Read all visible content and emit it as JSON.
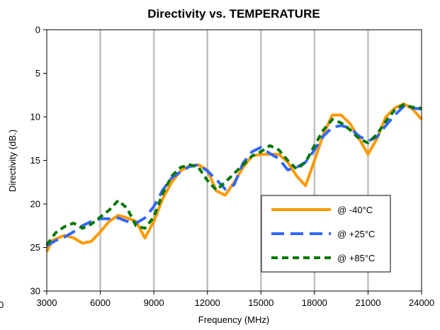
{
  "chart_data": {
    "type": "line",
    "title": "Directivity vs. TEMPERATURE",
    "xlabel": "Frequency (MHz)",
    "ylabel": "Directivity (dB.)",
    "xlim": [
      3000,
      24000
    ],
    "ylim": [
      0,
      30
    ],
    "y_inverted": true,
    "x_ticks": [
      3000,
      6000,
      9000,
      12000,
      15000,
      18000,
      21000,
      24000
    ],
    "y_ticks": [
      0,
      5,
      10,
      15,
      20,
      25,
      30
    ],
    "grid": "vertical",
    "legend_position": "bottom-right",
    "stray_tick_label": "0",
    "series": [
      {
        "name": "@ -40°C",
        "color": "#FF9900",
        "dash": "solid",
        "points": [
          [
            3000,
            25.5
          ],
          [
            3300,
            24.2
          ],
          [
            4000,
            23.6
          ],
          [
            4500,
            23.9
          ],
          [
            5000,
            24.5
          ],
          [
            5500,
            24.3
          ],
          [
            6000,
            23.2
          ],
          [
            6500,
            22.0
          ],
          [
            7000,
            21.3
          ],
          [
            7500,
            21.6
          ],
          [
            8000,
            22.0
          ],
          [
            8500,
            23.9
          ],
          [
            9000,
            22.0
          ],
          [
            9500,
            19.4
          ],
          [
            10000,
            17.5
          ],
          [
            10500,
            16.2
          ],
          [
            11000,
            15.6
          ],
          [
            11500,
            15.5
          ],
          [
            12000,
            16.1
          ],
          [
            12500,
            18.5
          ],
          [
            13000,
            19.0
          ],
          [
            13500,
            17.5
          ],
          [
            14000,
            15.8
          ],
          [
            14500,
            14.5
          ],
          [
            15000,
            14.3
          ],
          [
            15500,
            14.3
          ],
          [
            16000,
            14.3
          ],
          [
            16500,
            15.2
          ],
          [
            17000,
            16.8
          ],
          [
            17500,
            17.9
          ],
          [
            18000,
            15.0
          ],
          [
            18500,
            12.0
          ],
          [
            19000,
            9.8
          ],
          [
            19500,
            9.8
          ],
          [
            20000,
            10.8
          ],
          [
            20500,
            12.5
          ],
          [
            21000,
            14.3
          ],
          [
            21500,
            12.5
          ],
          [
            22000,
            10.0
          ],
          [
            22500,
            9.0
          ],
          [
            23000,
            8.5
          ],
          [
            23500,
            9.1
          ],
          [
            24000,
            10.3
          ]
        ]
      },
      {
        "name": "@ +25°C",
        "color": "#3366FF",
        "dash": "long-dash",
        "points": [
          [
            3000,
            24.8
          ],
          [
            3500,
            24.2
          ],
          [
            4000,
            23.8
          ],
          [
            4500,
            23.2
          ],
          [
            5000,
            22.5
          ],
          [
            5500,
            22.0
          ],
          [
            6000,
            21.7
          ],
          [
            6500,
            21.7
          ],
          [
            7000,
            21.6
          ],
          [
            7500,
            22.0
          ],
          [
            8000,
            22.2
          ],
          [
            8500,
            21.6
          ],
          [
            9000,
            20.3
          ],
          [
            9500,
            18.4
          ],
          [
            10000,
            17.0
          ],
          [
            10500,
            16.3
          ],
          [
            11000,
            15.7
          ],
          [
            11500,
            15.5
          ],
          [
            12000,
            16.2
          ],
          [
            12500,
            17.2
          ],
          [
            13000,
            18.3
          ],
          [
            13500,
            17.8
          ],
          [
            14000,
            15.3
          ],
          [
            14500,
            14.0
          ],
          [
            15000,
            13.5
          ],
          [
            15500,
            14.2
          ],
          [
            16000,
            14.8
          ],
          [
            16500,
            16.1
          ],
          [
            17000,
            15.8
          ],
          [
            17500,
            15.2
          ],
          [
            18000,
            13.8
          ],
          [
            18500,
            12.2
          ],
          [
            19000,
            11.2
          ],
          [
            19500,
            11.0
          ],
          [
            20000,
            11.3
          ],
          [
            20500,
            12.2
          ],
          [
            21000,
            12.8
          ],
          [
            21500,
            12.3
          ],
          [
            22000,
            11.0
          ],
          [
            22500,
            9.8
          ],
          [
            23000,
            8.8
          ],
          [
            23500,
            9.0
          ],
          [
            24000,
            9.1
          ]
        ]
      },
      {
        "name": "@ +85°C",
        "color": "#007700",
        "dash": "short-dash",
        "points": [
          [
            3000,
            24.7
          ],
          [
            3500,
            23.3
          ],
          [
            4000,
            22.6
          ],
          [
            4500,
            22.2
          ],
          [
            5000,
            22.8
          ],
          [
            5500,
            22.3
          ],
          [
            6000,
            21.5
          ],
          [
            6500,
            20.7
          ],
          [
            7000,
            19.6
          ],
          [
            7500,
            20.5
          ],
          [
            8000,
            22.5
          ],
          [
            8500,
            22.8
          ],
          [
            9000,
            21.5
          ],
          [
            9500,
            18.8
          ],
          [
            10000,
            16.8
          ],
          [
            10500,
            15.8
          ],
          [
            11000,
            15.5
          ],
          [
            11500,
            15.8
          ],
          [
            12000,
            17.3
          ],
          [
            12500,
            18.4
          ],
          [
            13000,
            17.5
          ],
          [
            13500,
            16.5
          ],
          [
            14000,
            15.5
          ],
          [
            14500,
            14.5
          ],
          [
            15000,
            14.0
          ],
          [
            15500,
            13.3
          ],
          [
            16000,
            13.8
          ],
          [
            16500,
            15.0
          ],
          [
            17000,
            16.0
          ],
          [
            17500,
            15.2
          ],
          [
            18000,
            13.3
          ],
          [
            18500,
            11.5
          ],
          [
            19000,
            10.3
          ],
          [
            19500,
            10.7
          ],
          [
            20000,
            11.5
          ],
          [
            20500,
            12.5
          ],
          [
            21000,
            13.0
          ],
          [
            21500,
            12.0
          ],
          [
            22000,
            10.5
          ],
          [
            22500,
            9.2
          ],
          [
            23000,
            8.6
          ],
          [
            23500,
            8.9
          ],
          [
            24000,
            9.0
          ]
        ]
      }
    ]
  }
}
